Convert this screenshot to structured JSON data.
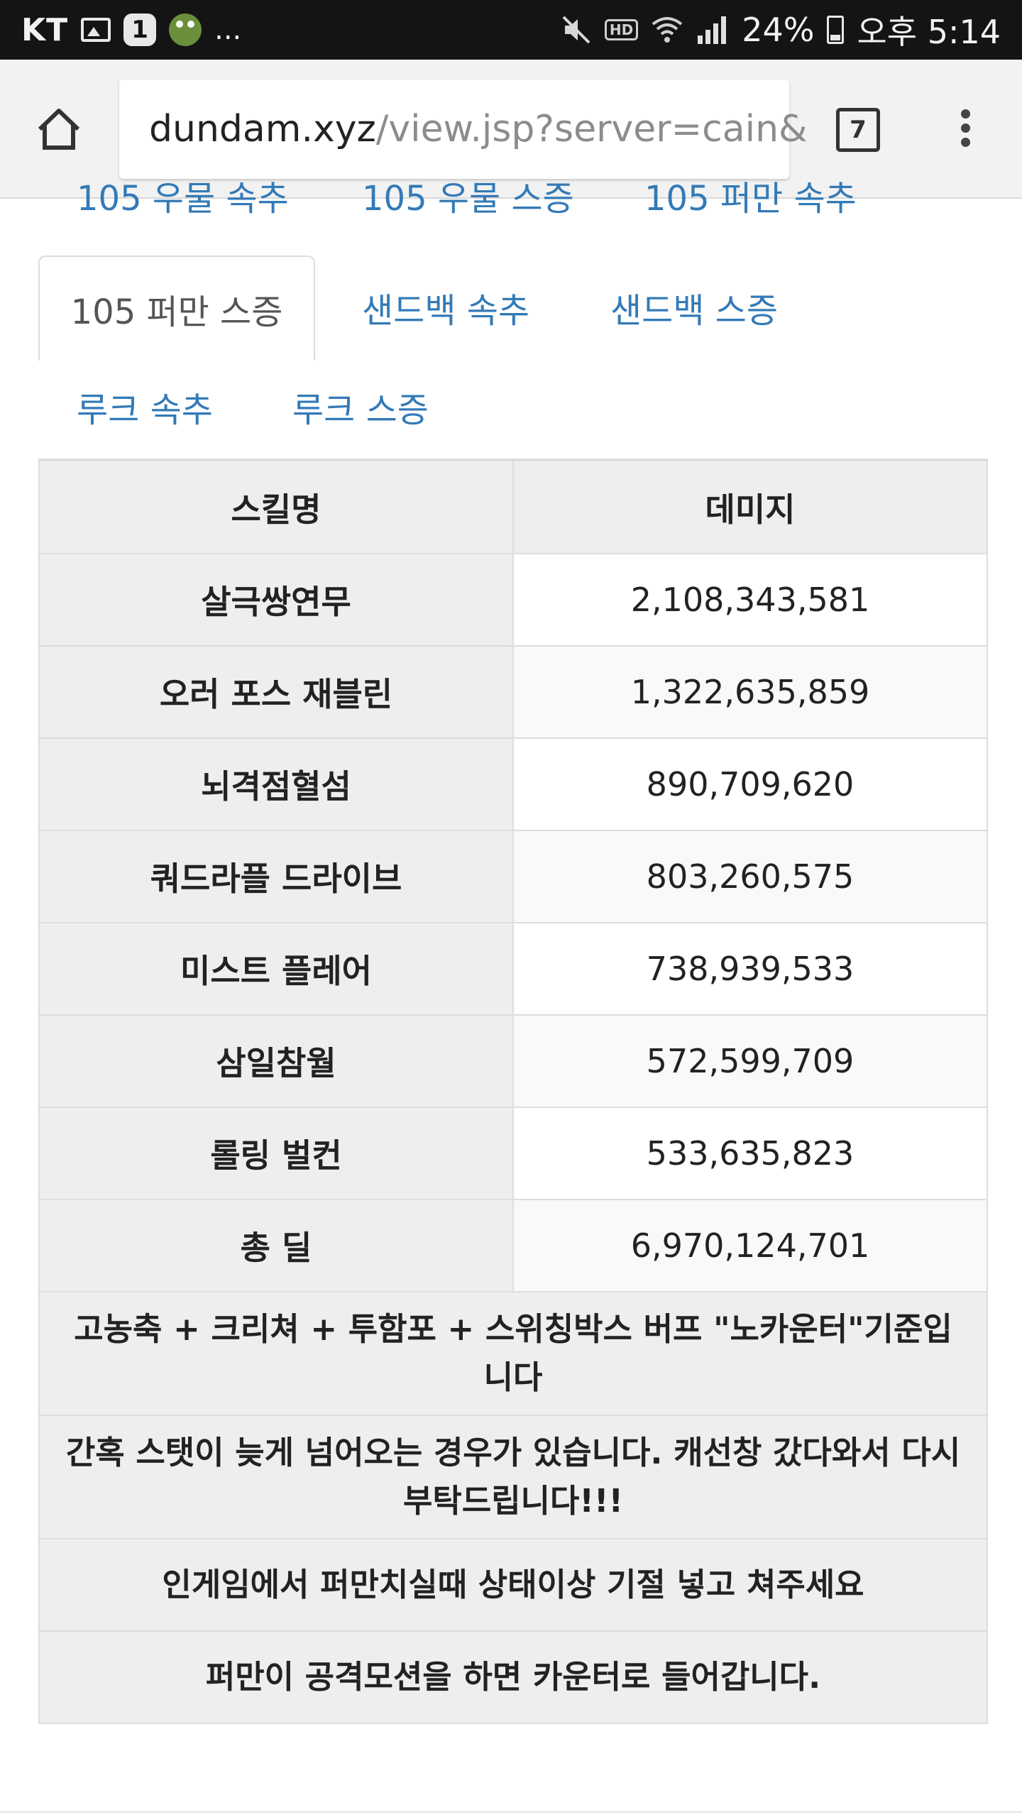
{
  "status_bar": {
    "carrier": "KT",
    "notification_badge": "1",
    "more": "...",
    "battery_percent": "24%",
    "time": "오후 5:14",
    "hd_label": "HD",
    "icons": [
      "gallery-icon",
      "app-notification-icon",
      "mute-icon",
      "wifi-icon",
      "signal-icon",
      "battery-icon"
    ]
  },
  "browser": {
    "url_host": "dundam.xyz",
    "url_path": "/view.jsp?server=cain&",
    "tab_count": "7"
  },
  "tabs": {
    "row0": [
      "105 우물 속추",
      "105 우물 스증",
      "105 퍼만 속추"
    ],
    "row1_active": "105 퍼만 스증",
    "row1": [
      "샌드백 속추",
      "샌드백 스증"
    ],
    "row2": [
      "루크 속추",
      "루크 스증"
    ]
  },
  "table": {
    "headers": [
      "스킬명",
      "데미지"
    ],
    "rows": [
      {
        "name": "살극쌍연무",
        "damage": "2,108,343,581"
      },
      {
        "name": "오러 포스 재블린",
        "damage": "1,322,635,859"
      },
      {
        "name": "뇌격점혈섬",
        "damage": "890,709,620"
      },
      {
        "name": "쿼드라플 드라이브",
        "damage": "803,260,575"
      },
      {
        "name": "미스트 플레어",
        "damage": "738,939,533"
      },
      {
        "name": "삼일참월",
        "damage": "572,599,709"
      },
      {
        "name": "롤링 벌컨",
        "damage": "533,635,823"
      },
      {
        "name": "총 딜",
        "damage": "6,970,124,701"
      }
    ],
    "notes": [
      "고농축 + 크리쳐 + 투함포 + 스위칭박스 버프 \"노카운터\"기준입니다",
      "간혹 스탯이 늦게 넘어오는 경우가 있습니다. 캐선창 갔다와서 다시 부탁드립니다!!!",
      "인게임에서 퍼만치실때 상태이상 기절 넣고 쳐주세요",
      "퍼만이 공격모션을 하면 카운터로 들어갑니다."
    ]
  },
  "colors": {
    "link": "#337ab7",
    "statusbar_bg": "#141414",
    "toolbar_bg": "#f2f2f2",
    "table_header_bg": "#eeeeee"
  }
}
